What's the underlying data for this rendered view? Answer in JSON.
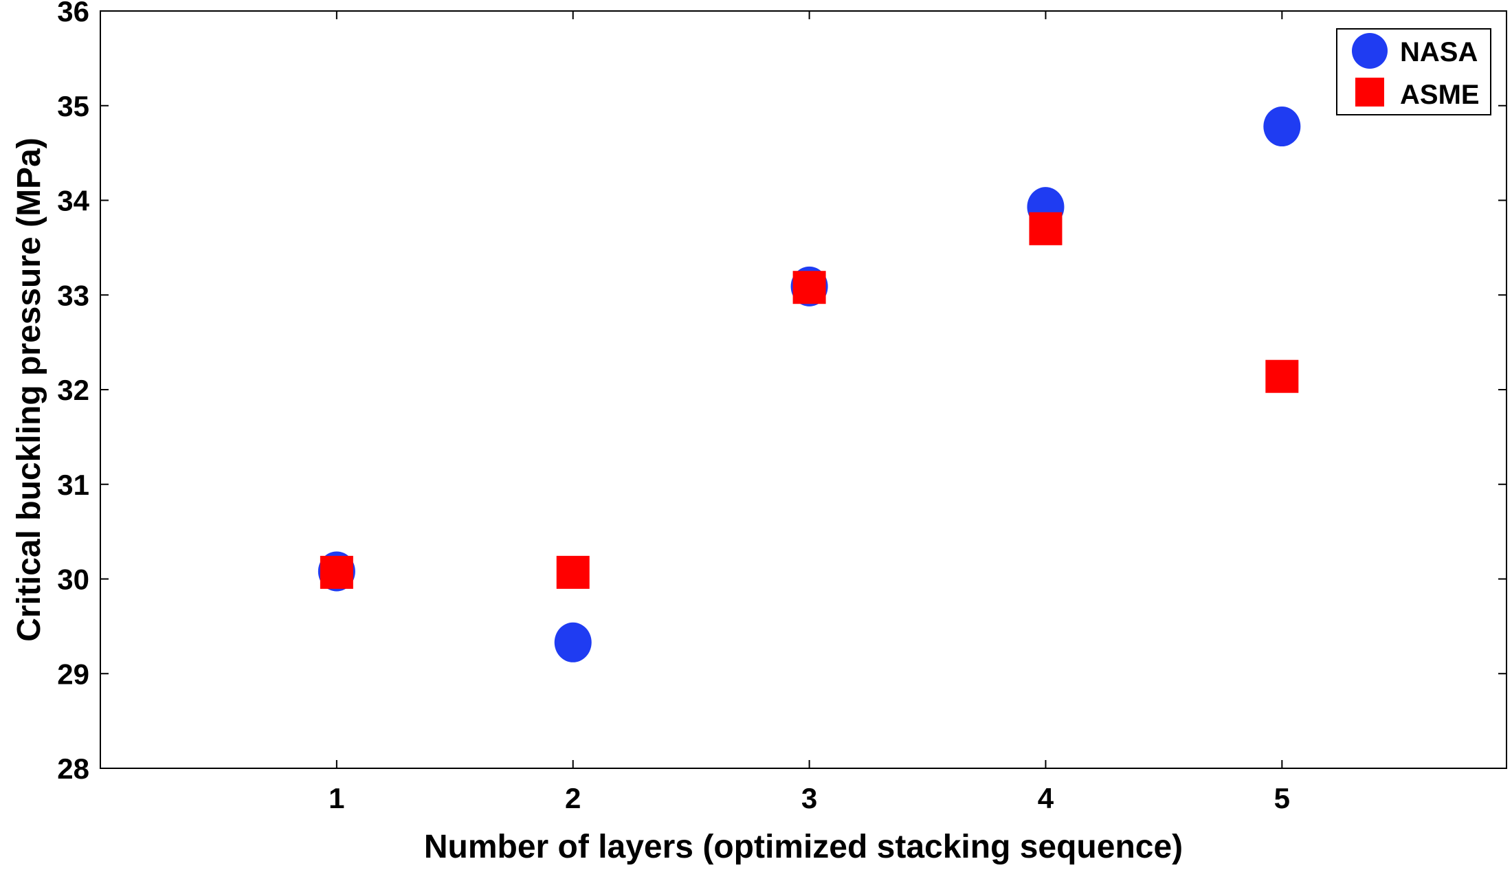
{
  "chart_data": {
    "type": "scatter",
    "title": "",
    "xlabel": "Number of layers (optimized stacking sequence)",
    "ylabel": "Critical buckling pressure (MPa)",
    "xlim": [
      0,
      5.95
    ],
    "ylim": [
      28,
      36
    ],
    "xticks": [
      1,
      2,
      3,
      4,
      5
    ],
    "yticks": [
      28,
      29,
      30,
      31,
      32,
      33,
      34,
      35,
      36
    ],
    "grid": false,
    "legend_position": "top-right",
    "series": [
      {
        "name": "NASA",
        "marker": "circle",
        "color": "#1f3cf2",
        "x": [
          1,
          2,
          3,
          4,
          5
        ],
        "y": [
          30.08,
          29.33,
          33.09,
          33.93,
          34.78
        ]
      },
      {
        "name": "ASME",
        "marker": "square",
        "color": "#ff0000",
        "x": [
          1,
          2,
          3,
          4,
          5
        ],
        "y": [
          30.07,
          30.07,
          33.08,
          33.7,
          32.14
        ]
      }
    ]
  }
}
